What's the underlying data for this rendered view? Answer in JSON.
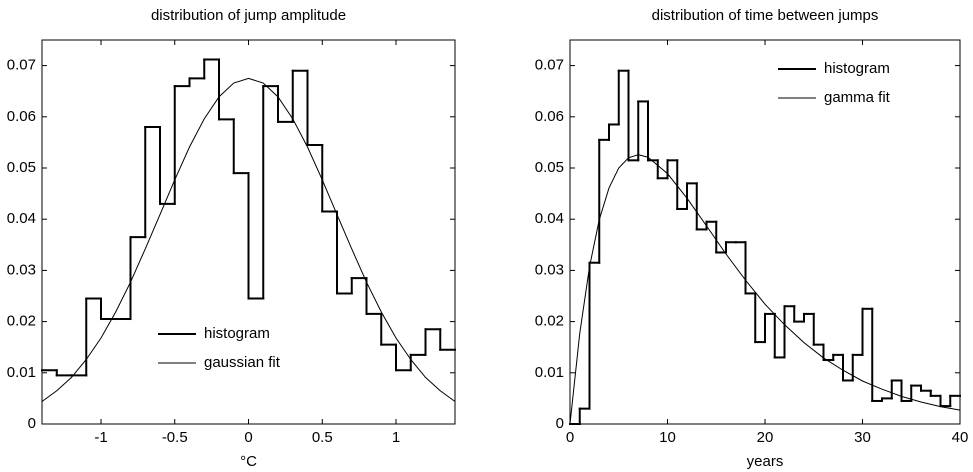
{
  "chart_data": [
    {
      "type": "histogram",
      "title": "distribution of jump amplitude",
      "xlabel": "°C",
      "xlim": [
        -1.4,
        1.4
      ],
      "ylim": [
        0,
        0.075
      ],
      "xticks": [
        -1,
        -0.5,
        0,
        0.5,
        1
      ],
      "yticks": [
        0,
        0.01,
        0.02,
        0.03,
        0.04,
        0.05,
        0.06,
        0.07
      ],
      "legend": "lower center",
      "bins": [
        -1.4,
        -1.3,
        -1.2,
        -1.1,
        -1.0,
        -0.9,
        -0.8,
        -0.7,
        -0.6,
        -0.5,
        -0.4,
        -0.3,
        -0.2,
        -0.1,
        0,
        0.1,
        0.2,
        0.3,
        0.4,
        0.5,
        0.6,
        0.7,
        0.8,
        0.9,
        1.0,
        1.1,
        1.2,
        1.3,
        1.4
      ],
      "series": [
        {
          "name": "histogram",
          "type": "histogram",
          "color": "#000000",
          "values": [
            0.0105,
            0.0095,
            0.0095,
            0.0245,
            0.0205,
            0.0205,
            0.0365,
            0.058,
            0.043,
            0.066,
            0.0675,
            0.0712,
            0.0595,
            0.049,
            0.0245,
            0.066,
            0.059,
            0.069,
            0.0545,
            0.0415,
            0.0255,
            0.0285,
            0.0215,
            0.0155,
            0.0105,
            0.0135,
            0.0185,
            0.0145
          ]
        },
        {
          "name": "gaussian fit",
          "type": "line",
          "color": "#000000",
          "x": [
            -1.4,
            -1.3,
            -1.2,
            -1.1,
            -1.0,
            -0.9,
            -0.8,
            -0.7,
            -0.6,
            -0.5,
            -0.4,
            -0.3,
            -0.2,
            -0.1,
            0,
            0.1,
            0.2,
            0.3,
            0.4,
            0.5,
            0.6,
            0.7,
            0.8,
            0.9,
            1.0,
            1.1,
            1.2,
            1.3,
            1.4
          ],
          "values": [
            0.0044,
            0.0065,
            0.0091,
            0.0126,
            0.0168,
            0.0219,
            0.0277,
            0.0342,
            0.0409,
            0.0477,
            0.0541,
            0.0596,
            0.0639,
            0.0666,
            0.0675,
            0.0666,
            0.0639,
            0.0596,
            0.0541,
            0.0477,
            0.0409,
            0.0342,
            0.0277,
            0.0219,
            0.0168,
            0.0126,
            0.0091,
            0.0065,
            0.0044
          ]
        }
      ]
    },
    {
      "type": "histogram",
      "title": "distribution of time between jumps",
      "xlabel": "years",
      "xlim": [
        0,
        40
      ],
      "ylim": [
        0,
        0.075
      ],
      "xticks": [
        0,
        10,
        20,
        30,
        40
      ],
      "yticks": [
        0,
        0.01,
        0.02,
        0.03,
        0.04,
        0.05,
        0.06,
        0.07
      ],
      "legend": "upper right",
      "bins": [
        0,
        1,
        2,
        3,
        4,
        5,
        6,
        7,
        8,
        9,
        10,
        11,
        12,
        13,
        14,
        15,
        16,
        17,
        18,
        19,
        20,
        21,
        22,
        23,
        24,
        25,
        26,
        27,
        28,
        29,
        30,
        31,
        32,
        33,
        34,
        35,
        36,
        37,
        38,
        39,
        40
      ],
      "series": [
        {
          "name": "histogram",
          "type": "histogram",
          "color": "#000000",
          "values": [
            0,
            0.003,
            0.0315,
            0.0555,
            0.0585,
            0.069,
            0.0515,
            0.063,
            0.0515,
            0.048,
            0.0515,
            0.042,
            0.047,
            0.038,
            0.0395,
            0.0335,
            0.0355,
            0.0355,
            0.0255,
            0.016,
            0.0215,
            0.013,
            0.023,
            0.02,
            0.0215,
            0.0155,
            0.0125,
            0.0135,
            0.0085,
            0.0135,
            0.0225,
            0.0045,
            0.005,
            0.0085,
            0.0045,
            0.0075,
            0.0065,
            0.0055,
            0.0035,
            0.0055
          ]
        },
        {
          "name": "gamma fit",
          "type": "line",
          "color": "#000000",
          "x": [
            0,
            1,
            2,
            3,
            4,
            5,
            6,
            7,
            8,
            10,
            12,
            14,
            16,
            18,
            20,
            22,
            24,
            26,
            28,
            30,
            32,
            34,
            36,
            38,
            40
          ],
          "values": [
            0,
            0.0177,
            0.0307,
            0.0399,
            0.0461,
            0.05,
            0.052,
            0.0526,
            0.0521,
            0.0489,
            0.0441,
            0.0387,
            0.0332,
            0.0281,
            0.0234,
            0.0194,
            0.0159,
            0.0129,
            0.0105,
            0.0084,
            0.0068,
            0.0054,
            0.0043,
            0.0034,
            0.0027
          ]
        }
      ]
    }
  ]
}
